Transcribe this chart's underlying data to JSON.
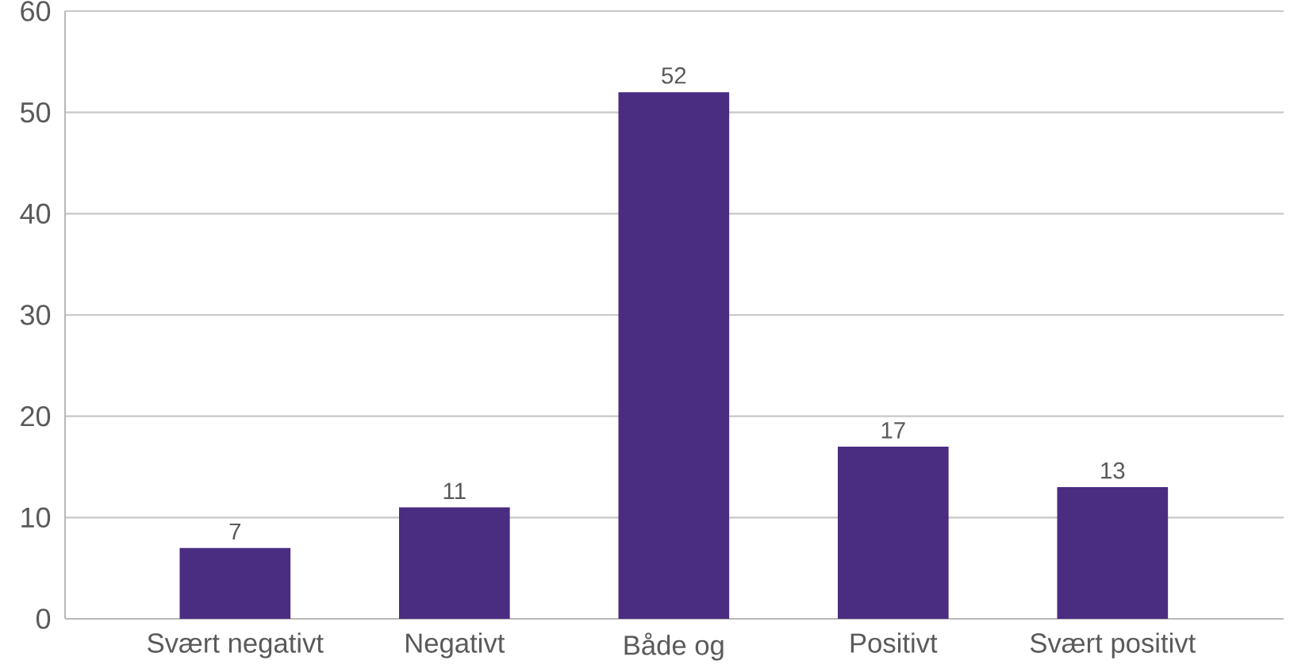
{
  "chart_data": {
    "type": "bar",
    "categories": [
      "Svært negativt",
      "Negativt",
      "Både og",
      "Positivt",
      "Svært positivt"
    ],
    "values": [
      7,
      11,
      52,
      17,
      13
    ],
    "color": "#4a2c81",
    "ylim": [
      0,
      60
    ],
    "yticks": [
      0,
      10,
      20,
      30,
      40,
      50,
      60
    ],
    "grid": "y",
    "data_labels": true
  }
}
